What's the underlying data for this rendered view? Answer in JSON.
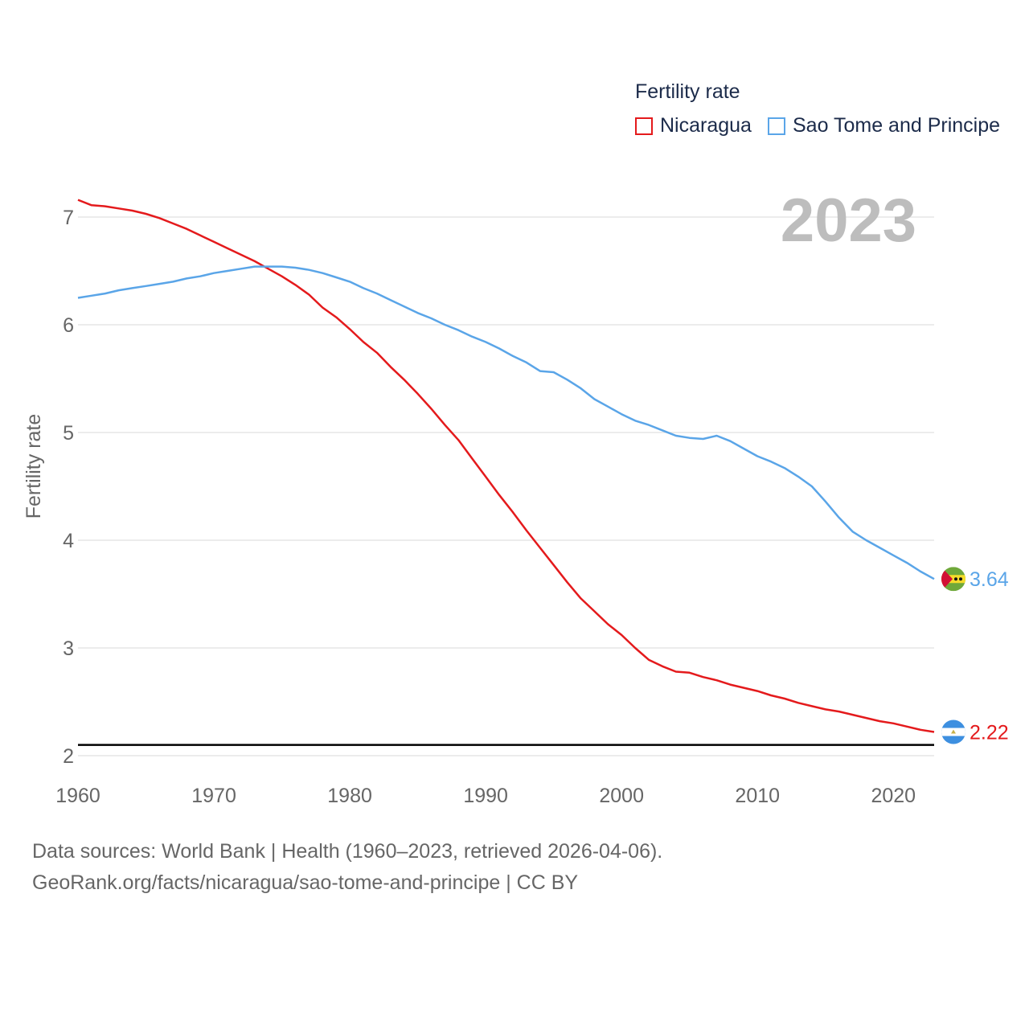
{
  "legend": {
    "title": "Fertility rate",
    "items": [
      {
        "label": "Nicaragua",
        "color": "#e41a1c"
      },
      {
        "label": "Sao Tome and Principe",
        "color": "#5aa5e8"
      }
    ]
  },
  "year_watermark": "2023",
  "source": {
    "line1": "Data sources: World Bank | Health (1960–2023, retrieved 2026-04-06).",
    "line2": "GeoRank.org/facts/nicaragua/sao-tome-and-principe | CC BY"
  },
  "chart_data": {
    "type": "line",
    "title": "Fertility rate",
    "xlabel": "",
    "ylabel": "Fertility rate",
    "xlim": [
      1960,
      2023
    ],
    "ylim": [
      2,
      7.3
    ],
    "x_ticks": [
      1960,
      1970,
      1980,
      1990,
      2000,
      2010,
      2020
    ],
    "y_ticks": [
      2,
      3,
      4,
      5,
      6,
      7
    ],
    "grid": true,
    "legend_position": "top-right",
    "reference_line": {
      "y": 2.1,
      "color": "#000000"
    },
    "series": [
      {
        "name": "Nicaragua",
        "color": "#e41a1c",
        "end_label": "2.22",
        "x": [
          1960,
          1961,
          1962,
          1963,
          1964,
          1965,
          1966,
          1967,
          1968,
          1969,
          1970,
          1971,
          1972,
          1973,
          1974,
          1975,
          1976,
          1977,
          1978,
          1979,
          1980,
          1981,
          1982,
          1983,
          1984,
          1985,
          1986,
          1987,
          1988,
          1989,
          1990,
          1991,
          1992,
          1993,
          1994,
          1995,
          1996,
          1997,
          1998,
          1999,
          2000,
          2001,
          2002,
          2003,
          2004,
          2005,
          2006,
          2007,
          2008,
          2009,
          2010,
          2011,
          2012,
          2013,
          2014,
          2015,
          2016,
          2017,
          2018,
          2019,
          2020,
          2021,
          2022,
          2023
        ],
        "values": [
          7.16,
          7.11,
          7.1,
          7.08,
          7.06,
          7.03,
          6.99,
          6.94,
          6.89,
          6.83,
          6.77,
          6.71,
          6.65,
          6.59,
          6.52,
          6.45,
          6.37,
          6.28,
          6.16,
          6.07,
          5.96,
          5.84,
          5.74,
          5.61,
          5.49,
          5.36,
          5.22,
          5.07,
          4.93,
          4.76,
          4.59,
          4.42,
          4.26,
          4.09,
          3.93,
          3.77,
          3.61,
          3.46,
          3.34,
          3.22,
          3.12,
          3.0,
          2.89,
          2.83,
          2.78,
          2.77,
          2.73,
          2.7,
          2.66,
          2.63,
          2.6,
          2.56,
          2.53,
          2.49,
          2.46,
          2.43,
          2.41,
          2.38,
          2.35,
          2.32,
          2.3,
          2.27,
          2.24,
          2.22
        ]
      },
      {
        "name": "Sao Tome and Principe",
        "color": "#5aa5e8",
        "end_label": "3.64",
        "x": [
          1960,
          1961,
          1962,
          1963,
          1964,
          1965,
          1966,
          1967,
          1968,
          1969,
          1970,
          1971,
          1972,
          1973,
          1974,
          1975,
          1976,
          1977,
          1978,
          1979,
          1980,
          1981,
          1982,
          1983,
          1984,
          1985,
          1986,
          1987,
          1988,
          1989,
          1990,
          1991,
          1992,
          1993,
          1994,
          1995,
          1996,
          1997,
          1998,
          1999,
          2000,
          2001,
          2002,
          2003,
          2004,
          2005,
          2006,
          2007,
          2008,
          2009,
          2010,
          2011,
          2012,
          2013,
          2014,
          2015,
          2016,
          2017,
          2018,
          2019,
          2020,
          2021,
          2022,
          2023
        ],
        "values": [
          6.25,
          6.27,
          6.29,
          6.32,
          6.34,
          6.36,
          6.38,
          6.4,
          6.43,
          6.45,
          6.48,
          6.5,
          6.52,
          6.54,
          6.54,
          6.54,
          6.53,
          6.51,
          6.48,
          6.44,
          6.4,
          6.34,
          6.29,
          6.23,
          6.17,
          6.11,
          6.06,
          6.0,
          5.95,
          5.89,
          5.84,
          5.78,
          5.71,
          5.65,
          5.57,
          5.56,
          5.49,
          5.41,
          5.31,
          5.24,
          5.17,
          5.11,
          5.07,
          5.02,
          4.97,
          4.95,
          4.94,
          4.97,
          4.92,
          4.85,
          4.78,
          4.73,
          4.67,
          4.59,
          4.5,
          4.36,
          4.21,
          4.08,
          4.0,
          3.93,
          3.86,
          3.79,
          3.71,
          3.64
        ]
      }
    ]
  }
}
